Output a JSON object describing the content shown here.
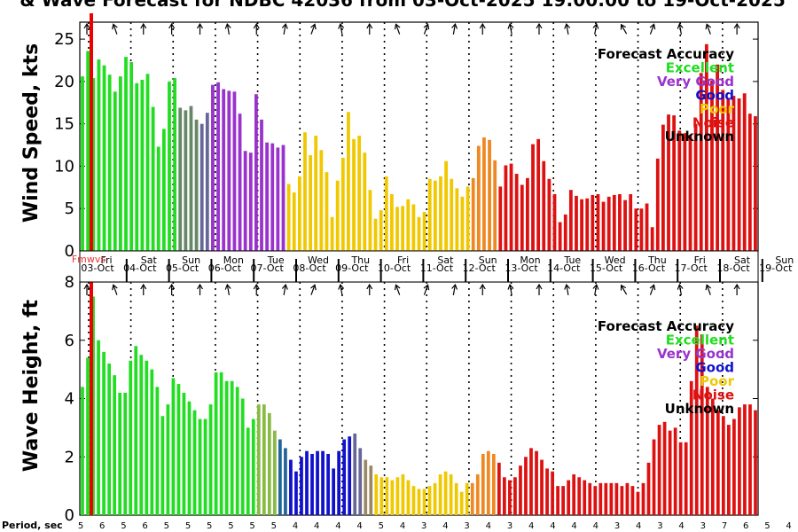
{
  "title": "& Wave Forecast for NDBC 42036 from 03-Oct-2025 19:00:00 to 19-Oct-2025",
  "colors": {
    "excellent": "#22dd22",
    "very_good": "#9933cc",
    "good": "#1111cc",
    "poor": "#f0c800",
    "noise": "#dd1111",
    "unknown": "#000000",
    "transition_ev": "#668866",
    "transition_vg": "#666699",
    "transition_gp": "#998866",
    "transition_po": "#ee8822",
    "transition_ep": "#88bb44",
    "transition_ok": "#226699",
    "marker": "#ee0000"
  },
  "legend": {
    "title": "Forecast Accuracy",
    "items": [
      {
        "label": "Excellent",
        "color_key": "excellent"
      },
      {
        "label": "Very Good",
        "color_key": "very_good"
      },
      {
        "label": "Good",
        "color_key": "good"
      },
      {
        "label": "Poor",
        "color_key": "poor"
      },
      {
        "label": "Noise",
        "color_key": "noise"
      },
      {
        "label": "Unknown",
        "color_key": "unknown"
      }
    ]
  },
  "days": [
    "Fri",
    "Sat",
    "Sun",
    "Mon",
    "Tue",
    "Wed",
    "Thu",
    "Fri",
    "Sat",
    "Sun",
    "Mon",
    "Tue",
    "Wed",
    "Thu",
    "Fri",
    "Sat",
    "Sun"
  ],
  "dates": [
    "03-Oct",
    "04-Oct",
    "05-Oct",
    "06-Oct",
    "07-Oct",
    "08-Oct",
    "09-Oct",
    "10-Oct",
    "11-Oct",
    "12-Oct",
    "13-Oct",
    "14-Oct",
    "15-Oct",
    "16-Oct",
    "17-Oct",
    "18-Oct",
    "19-Oct"
  ],
  "marker_label": "Fmwvs",
  "period_label": "Period, sec",
  "periods": [
    5,
    6,
    5,
    6,
    5,
    5,
    5,
    5,
    5,
    5,
    4,
    4,
    4,
    4,
    5,
    4,
    3,
    4,
    3,
    4,
    3,
    4,
    4,
    4,
    4,
    3,
    4,
    3,
    4,
    3,
    7,
    6,
    5,
    4,
    6,
    5,
    6,
    4
  ],
  "chart_data": [
    {
      "type": "bar",
      "name": "wind-speed",
      "ylabel": "Wind Speed, kts",
      "ylim": [
        0,
        27
      ],
      "yticks": [
        0,
        5,
        10,
        15,
        20,
        25
      ],
      "x_range_days": [
        0,
        16.05
      ],
      "bar_step_hours": 3,
      "start_offset_hours": -1,
      "marker_hour": 0.8,
      "grid": "vertical dotted at midnight",
      "values": [
        20.6,
        23.6,
        20.4,
        22.6,
        21.9,
        20.8,
        18.8,
        20.6,
        22.9,
        22.3,
        19.8,
        20.2,
        20.9,
        17.0,
        12.3,
        14.4,
        20.0,
        20.4,
        16.9,
        16.6,
        17.1,
        15.5,
        15.0,
        16.3,
        19.6,
        19.9,
        19.1,
        18.9,
        18.8,
        16.2,
        11.8,
        11.6,
        18.5,
        15.5,
        12.8,
        12.7,
        12.2,
        12.5,
        7.9,
        6.9,
        8.8,
        14.0,
        11.3,
        13.6,
        11.9,
        9.3,
        4.0,
        8.3,
        11.0,
        16.4,
        13.2,
        13.6,
        11.6,
        7.2,
        3.8,
        4.8,
        8.8,
        6.7,
        5.2,
        5.3,
        6.1,
        5.5,
        4.0,
        4.6,
        8.5,
        8.3,
        8.8,
        10.6,
        8.5,
        7.4,
        6.4,
        7.6,
        8.6,
        12.4,
        13.4,
        13.1,
        10.7,
        7.6,
        10.1,
        10.3,
        9.1,
        7.8,
        8.6,
        12.6,
        13.2,
        10.6,
        8.5,
        6.7,
        3.4,
        4.3,
        7.2,
        6.5,
        6.1,
        6.2,
        6.6,
        6.7,
        5.8,
        6.4,
        6.6,
        6.7,
        6.0,
        6.7,
        5.0,
        5.0,
        5.6,
        2.8,
        10.9,
        14.9,
        16.1,
        16.0,
        14.2,
        13.9,
        13.7,
        15.0,
        21.0,
        24.4,
        20.1,
        22.0,
        19.0,
        17.9,
        18.3,
        18.0,
        18.6,
        16.2,
        15.9
      ],
      "quality": [
        "E",
        "E",
        "E",
        "E",
        "E",
        "E",
        "E",
        "E",
        "E",
        "E",
        "E",
        "E",
        "E",
        "E",
        "E",
        "E",
        "E",
        "E",
        "EV",
        "EV",
        "EV",
        "EV",
        "VG",
        "VG",
        "V",
        "V",
        "V",
        "V",
        "V",
        "V",
        "V",
        "V",
        "V",
        "V",
        "V",
        "V",
        "V",
        "V",
        "P",
        "P",
        "P",
        "P",
        "P",
        "P",
        "P",
        "P",
        "P",
        "P",
        "P",
        "P",
        "P",
        "P",
        "P",
        "P",
        "P",
        "P",
        "P",
        "P",
        "P",
        "P",
        "P",
        "P",
        "P",
        "P",
        "P",
        "P",
        "P",
        "P",
        "P",
        "P",
        "P",
        "P",
        "PO",
        "PO",
        "PO",
        "PO",
        "PO",
        "N",
        "N",
        "N",
        "N",
        "N",
        "N",
        "N",
        "N",
        "N",
        "N",
        "N",
        "N",
        "N",
        "N",
        "N",
        "N",
        "N",
        "N",
        "N",
        "N",
        "N",
        "N",
        "N",
        "N",
        "N",
        "N",
        "N",
        "N",
        "N",
        "N",
        "N",
        "N",
        "N",
        "N",
        "N",
        "N",
        "N",
        "N",
        "N",
        "N",
        "N",
        "N",
        "N",
        "N",
        "N",
        "N",
        "N",
        "N"
      ]
    },
    {
      "type": "bar",
      "name": "wave-height",
      "ylabel": "Wave Height, ft",
      "ylim": [
        0,
        8
      ],
      "yticks": [
        0,
        2,
        4,
        6,
        8
      ],
      "x_range_days": [
        0,
        16.05
      ],
      "bar_step_hours": 3,
      "start_offset_hours": -1,
      "marker_hour": 0.8,
      "grid": "vertical dotted at midnight",
      "values": [
        4.4,
        5.4,
        7.5,
        6.0,
        5.6,
        5.2,
        4.8,
        4.2,
        4.2,
        5.3,
        5.8,
        5.5,
        5.3,
        5.0,
        4.4,
        3.4,
        3.8,
        4.7,
        4.5,
        4.2,
        3.9,
        3.6,
        3.3,
        3.3,
        3.8,
        4.9,
        4.9,
        4.6,
        4.6,
        4.4,
        4.0,
        3.0,
        3.3,
        3.8,
        3.8,
        3.5,
        2.9,
        2.6,
        2.3,
        1.9,
        1.5,
        2.0,
        2.2,
        2.1,
        2.2,
        2.2,
        2.1,
        1.6,
        2.2,
        2.6,
        2.7,
        2.8,
        2.3,
        1.9,
        1.7,
        1.4,
        1.3,
        1.3,
        1.2,
        1.3,
        1.4,
        1.2,
        1.0,
        0.9,
        0.9,
        1.0,
        1.1,
        1.4,
        1.5,
        1.4,
        1.1,
        0.8,
        1.1,
        1.1,
        1.4,
        2.1,
        2.2,
        2.1,
        1.8,
        1.3,
        1.2,
        1.3,
        1.7,
        2.0,
        2.3,
        2.2,
        1.9,
        1.6,
        1.5,
        1.0,
        1.0,
        1.2,
        1.4,
        1.3,
        1.2,
        1.1,
        1.0,
        1.1,
        1.1,
        1.1,
        1.1,
        1.0,
        1.1,
        1.0,
        0.8,
        1.1,
        1.8,
        2.6,
        3.1,
        3.2,
        2.9,
        3.0,
        2.5,
        2.5,
        4.6,
        6.5,
        6.2,
        4.4,
        4.0,
        3.6,
        3.4,
        3.1,
        3.3,
        3.7,
        3.8,
        3.8,
        3.6
      ],
      "quality": [
        "E",
        "E",
        "E",
        "E",
        "E",
        "E",
        "E",
        "E",
        "E",
        "E",
        "E",
        "E",
        "E",
        "E",
        "E",
        "E",
        "E",
        "E",
        "E",
        "E",
        "E",
        "E",
        "E",
        "E",
        "E",
        "E",
        "E",
        "E",
        "E",
        "E",
        "E",
        "E",
        "E",
        "EO",
        "EO",
        "EO",
        "EO",
        "OK",
        "OK",
        "G",
        "G",
        "G",
        "G",
        "G",
        "G",
        "G",
        "G",
        "G",
        "G",
        "G",
        "G",
        "VG",
        "VG",
        "GP",
        "GP",
        "P",
        "P",
        "P",
        "P",
        "P",
        "P",
        "P",
        "P",
        "P",
        "P",
        "P",
        "P",
        "P",
        "P",
        "P",
        "P",
        "P",
        "P",
        "PO",
        "PO",
        "PO",
        "PO",
        "PO",
        "N",
        "N",
        "N",
        "N",
        "N",
        "N",
        "N",
        "N",
        "N",
        "N",
        "N",
        "N",
        "N",
        "N",
        "N",
        "N",
        "N",
        "N",
        "N",
        "N",
        "N",
        "N",
        "N",
        "N",
        "N",
        "N",
        "N",
        "N",
        "N",
        "N",
        "N",
        "N",
        "N",
        "N",
        "N",
        "N",
        "N",
        "N",
        "N",
        "N",
        "N",
        "N",
        "N",
        "N",
        "N",
        "N",
        "N",
        "N",
        "N"
      ]
    }
  ],
  "wind_arrows_deg": [
    180,
    160,
    180,
    180,
    180,
    170,
    180,
    190,
    200,
    170,
    180,
    160,
    200,
    190,
    180,
    170,
    180,
    170,
    190,
    150,
    200,
    170,
    160,
    180,
    130,
    150,
    160,
    140,
    130,
    120,
    110,
    115,
    130,
    150,
    140,
    160,
    120,
    115,
    110,
    95,
    120,
    160,
    200,
    210,
    190,
    200,
    180,
    170
  ],
  "wave_arrows_deg": [
    180,
    160,
    180,
    180,
    180,
    170,
    180,
    190,
    200,
    170,
    180,
    160,
    200,
    190,
    180,
    170,
    180,
    170,
    190,
    150,
    200,
    170,
    160,
    180,
    130,
    150,
    160,
    140,
    130,
    120,
    110,
    115,
    130,
    150,
    140,
    160,
    120,
    115,
    110,
    95,
    120,
    160,
    200,
    210,
    190,
    200,
    180,
    170
  ]
}
